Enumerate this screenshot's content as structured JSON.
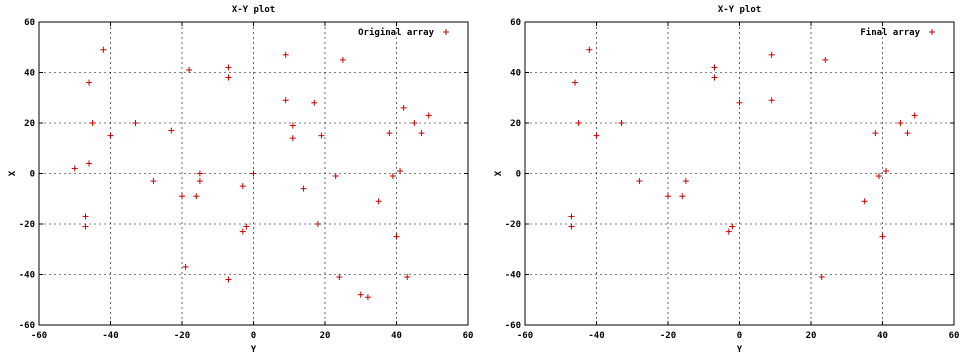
{
  "chart_data": [
    {
      "type": "scatter",
      "title": "X-Y plot",
      "xlabel": "Y",
      "ylabel": "X",
      "xlim": [
        -60,
        60
      ],
      "ylim": [
        -60,
        60
      ],
      "xticks": [
        "-60",
        "-40",
        "-20",
        "0",
        "20",
        "40",
        "60"
      ],
      "yticks": [
        "60",
        "40",
        "20",
        "0",
        "-20",
        "-40",
        "-60"
      ],
      "grid": true,
      "legend_position": "top-right",
      "marker_color": "#cc0000",
      "series": [
        {
          "name": "Original array",
          "x": [
            -42,
            -46,
            -45,
            -40,
            -33,
            -23,
            -18,
            -7,
            -7,
            9,
            9,
            11,
            11,
            17,
            19,
            25,
            -50,
            -47,
            -47,
            -46,
            -28,
            -20,
            -19,
            -16,
            -15,
            -15,
            -7,
            -3,
            -3,
            -2,
            0,
            14,
            18,
            23,
            24,
            30,
            32,
            35,
            38,
            39,
            40,
            41,
            42,
            43,
            45,
            47,
            49
          ],
          "y": [
            49,
            36,
            20,
            15,
            20,
            17,
            41,
            42,
            38,
            47,
            29,
            19,
            14,
            28,
            15,
            45,
            2,
            -17,
            -21,
            4,
            -3,
            -9,
            -37,
            -9,
            0,
            -3,
            -42,
            -5,
            -23,
            -21,
            0,
            -6,
            -20,
            -1,
            -41,
            -48,
            -49,
            -11,
            16,
            -1,
            -25,
            1,
            26,
            -41,
            20,
            16,
            23
          ]
        }
      ]
    },
    {
      "type": "scatter",
      "title": "X-Y plot",
      "xlabel": "Y",
      "ylabel": "X",
      "xlim": [
        -60,
        60
      ],
      "ylim": [
        -60,
        60
      ],
      "xticks": [
        "-60",
        "-40",
        "-20",
        "0",
        "20",
        "40",
        "60"
      ],
      "yticks": [
        "60",
        "40",
        "20",
        "0",
        "-20",
        "-40",
        "-60"
      ],
      "grid": true,
      "legend_position": "top-right",
      "marker_color": "#cc0000",
      "series": [
        {
          "name": "Final array",
          "x": [
            -42,
            -46,
            -45,
            -40,
            -33,
            -28,
            -20,
            -16,
            -15,
            -7,
            -7,
            -3,
            -2,
            0,
            9,
            9,
            24,
            -47,
            -47,
            23,
            35,
            38,
            39,
            40,
            41,
            45,
            47,
            49
          ],
          "y": [
            49,
            36,
            20,
            15,
            20,
            -3,
            -9,
            -9,
            -3,
            42,
            38,
            -23,
            -21,
            28,
            47,
            29,
            45,
            -17,
            -21,
            -41,
            -11,
            16,
            -1,
            -25,
            1,
            20,
            16,
            23
          ]
        }
      ]
    }
  ]
}
